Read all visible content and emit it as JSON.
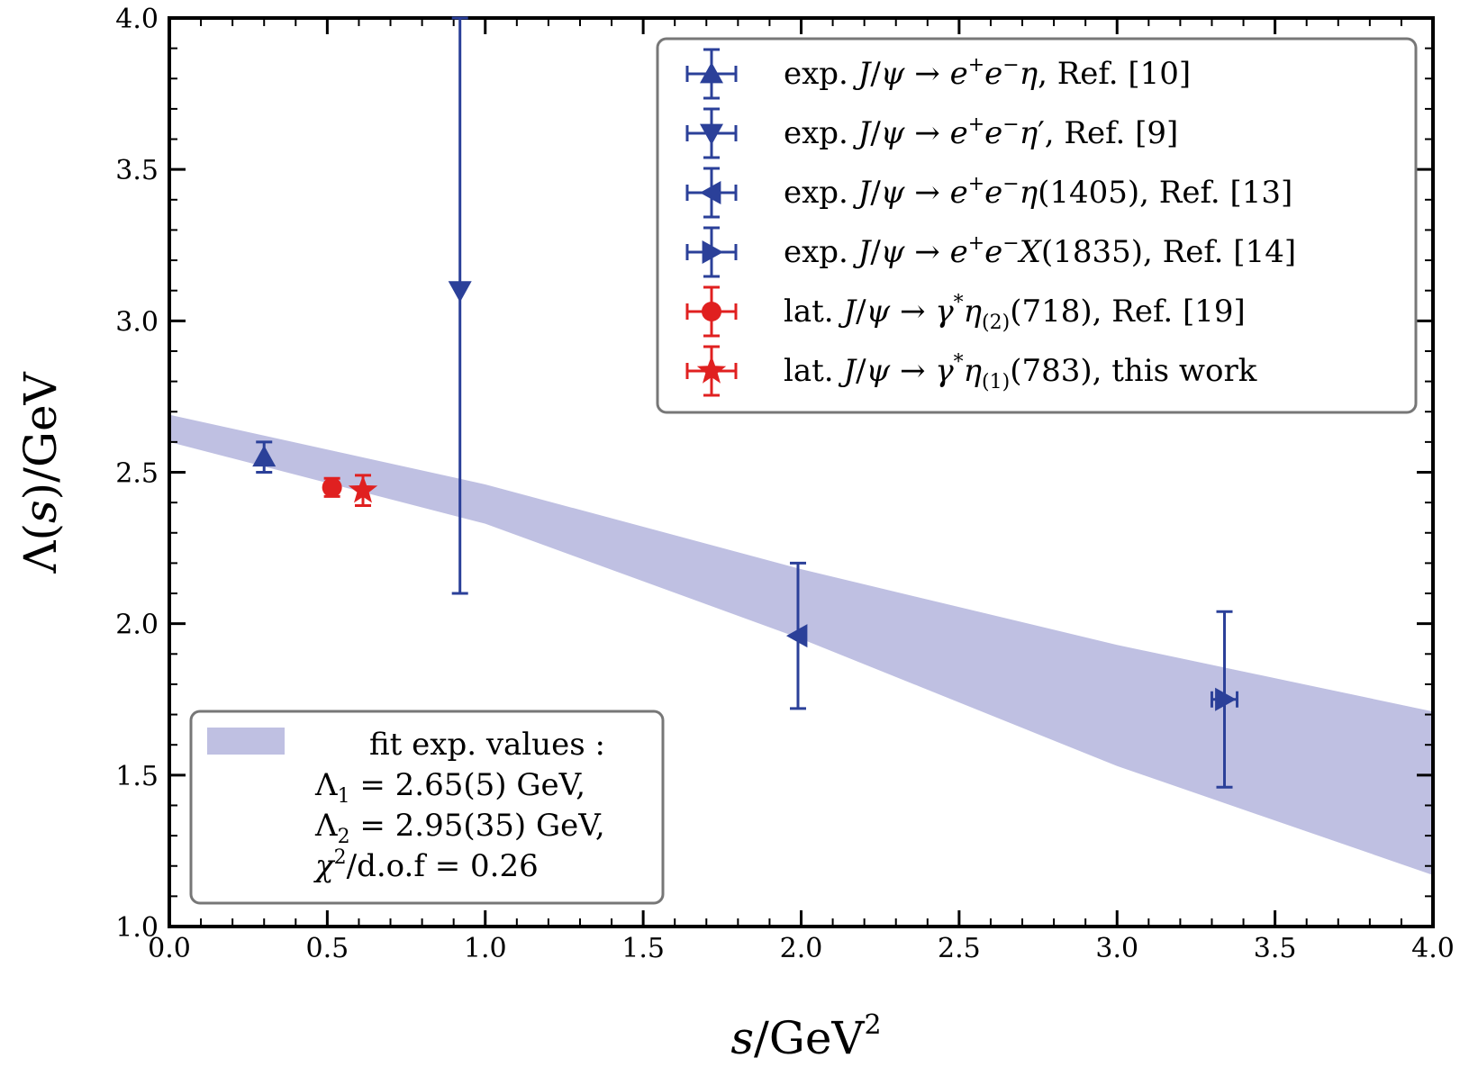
{
  "chart_data": {
    "type": "scatter",
    "title": "",
    "xlabel": "s/GeV²",
    "ylabel": "Λ(s)/GeV",
    "xlim": [
      0.0,
      4.0
    ],
    "ylim": [
      1.0,
      4.0
    ],
    "xticks": [
      "0.0",
      "0.5",
      "1.0",
      "1.5",
      "2.0",
      "2.5",
      "3.0",
      "3.5",
      "4.0"
    ],
    "yticks": [
      "1.0",
      "1.5",
      "2.0",
      "2.5",
      "3.0",
      "3.5",
      "4.0"
    ],
    "band": {
      "name": "fit exp. values :",
      "color": "#bfc0e2",
      "lower": [
        [
          0.0,
          2.6
        ],
        [
          1.0,
          2.33
        ],
        [
          2.0,
          1.95
        ],
        [
          3.0,
          1.53
        ],
        [
          4.0,
          1.17
        ]
      ],
      "upper": [
        [
          0.0,
          2.69
        ],
        [
          1.0,
          2.46
        ],
        [
          2.0,
          2.18
        ],
        [
          3.0,
          1.93
        ],
        [
          4.0,
          1.71
        ]
      ],
      "annotations": [
        "Λ₁ = 2.65(5) GeV,",
        "Λ₂ = 2.95(35) GeV,",
        "χ²/d.o.f = 0.26"
      ]
    },
    "series": [
      {
        "name": "exp. J/ψ → e⁺e⁻η,  Ref. [10]",
        "marker": "triangle-up",
        "color": "#2b4099",
        "points": [
          {
            "x": 0.3,
            "y": 2.55,
            "xerr": 0.0,
            "yerr": 0.05
          }
        ]
      },
      {
        "name": "exp. J/ψ → e⁺e⁻η′,  Ref. [9]",
        "marker": "triangle-down",
        "color": "#2b4099",
        "points": [
          {
            "x": 0.92,
            "y": 3.1,
            "xerr": 0.0,
            "yerr": 1.0
          }
        ]
      },
      {
        "name": "exp. J/ψ → e⁺e⁻η(1405),  Ref. [13]",
        "marker": "triangle-left",
        "color": "#2b4099",
        "points": [
          {
            "x": 1.99,
            "y": 1.96,
            "xerr": 0.0,
            "yerr": 0.24
          }
        ]
      },
      {
        "name": "exp. J/ψ → e⁺e⁻X(1835),  Ref. [14]",
        "marker": "triangle-right",
        "color": "#2b4099",
        "points": [
          {
            "x": 3.34,
            "y": 1.75,
            "xerr": 0.04,
            "yerr": 0.29
          }
        ]
      },
      {
        "name": "lat.  J/ψ → γ*η₍₂₎(718),  Ref. [19]",
        "marker": "circle",
        "color": "#e02020",
        "points": [
          {
            "x": 0.515,
            "y": 2.45,
            "xerr": 0.0,
            "yerr": 0.03
          }
        ]
      },
      {
        "name": "lat.  J/ψ → γ*η₍₁₎(783),  this work",
        "marker": "star",
        "color": "#e02020",
        "points": [
          {
            "x": 0.613,
            "y": 2.44,
            "xerr": 0.0,
            "yerr": 0.05
          }
        ]
      }
    ]
  }
}
